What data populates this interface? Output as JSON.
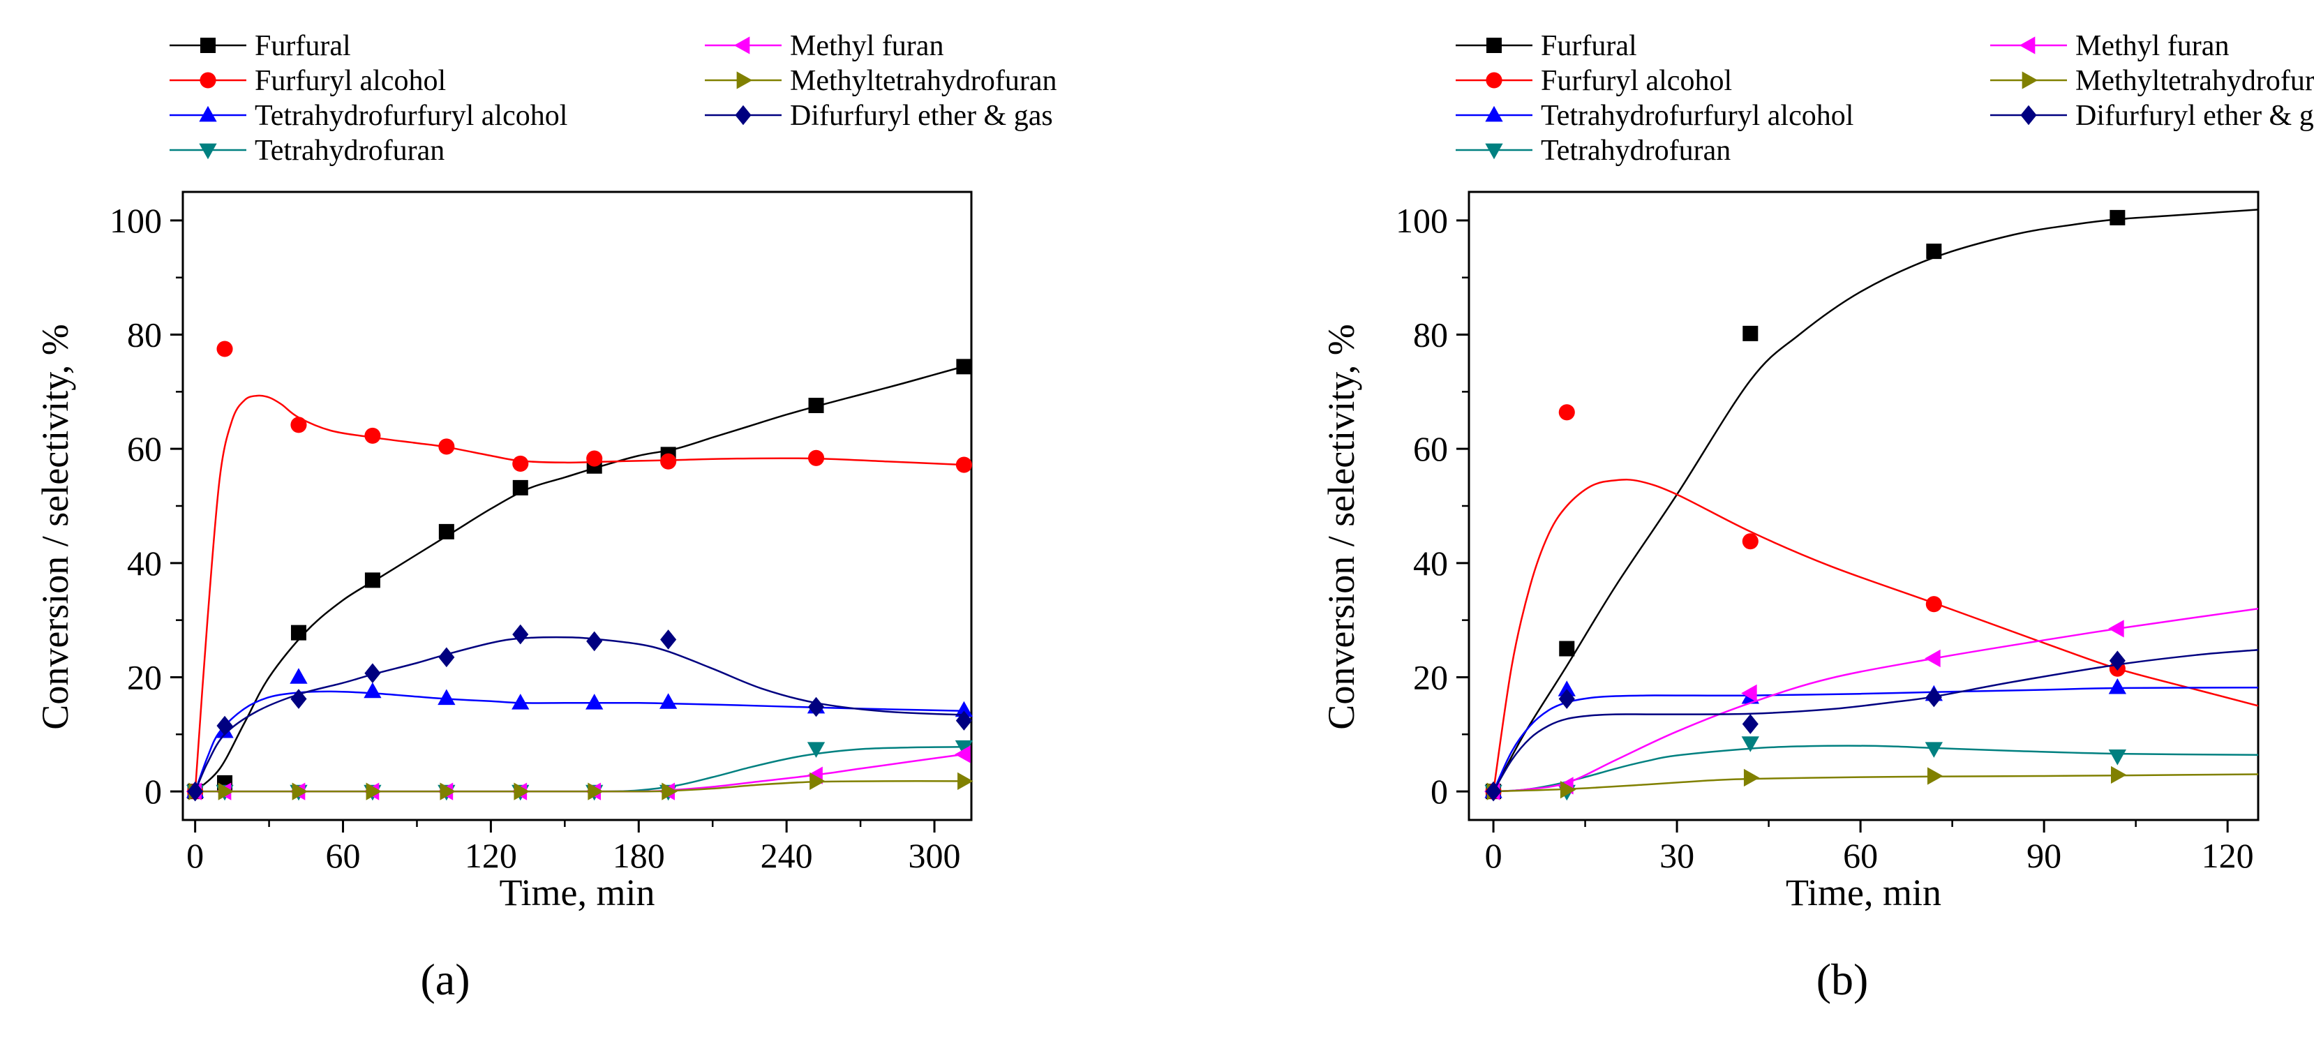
{
  "figure": {
    "panel_labels": [
      "(a)",
      "(b)"
    ]
  },
  "legend_entries": [
    {
      "name": "Furfural",
      "color": "#000000",
      "marker": "square"
    },
    {
      "name": "Furfuryl alcohol",
      "color": "#ff0000",
      "marker": "circle"
    },
    {
      "name": "Tetrahydrofurfuryl alcohol",
      "color": "#0000ff",
      "marker": "triangle-up"
    },
    {
      "name": "Tetrahydrofuran",
      "color": "#008080",
      "marker": "triangle-down"
    },
    {
      "name": "Methyl furan",
      "color": "#ff00ff",
      "marker": "triangle-left"
    },
    {
      "name": "Methyltetrahydrofuran",
      "color": "#808000",
      "marker": "triangle-right"
    },
    {
      "name": "Difurfuryl ether & gas",
      "color": "#000080",
      "marker": "diamond"
    }
  ],
  "chart_data": [
    {
      "type": "scatter",
      "panel": "(a)",
      "title": "",
      "xlabel": "Time, min",
      "ylabel": "Conversion / selectivity, %",
      "xlim": [
        -5,
        315
      ],
      "ylim": [
        -5,
        105
      ],
      "xticks": [
        0,
        60,
        120,
        180,
        240,
        300
      ],
      "yticks": [
        0,
        20,
        40,
        60,
        80,
        100
      ],
      "legend_position": "top",
      "series": [
        {
          "name": "Furfural",
          "x": [
            0,
            12,
            42,
            72,
            102,
            132,
            162,
            192,
            252,
            312
          ],
          "y": [
            0,
            1.5,
            27.8,
            37,
            45.5,
            53.2,
            57,
            59,
            67.6,
            74.4
          ],
          "fit_x": [
            0,
            10,
            20,
            30,
            45,
            60,
            75,
            90,
            105,
            120,
            135,
            150,
            165,
            180,
            195,
            210,
            225,
            240,
            255,
            270,
            285,
            300,
            315
          ],
          "fit_y": [
            0,
            4,
            12,
            20,
            28,
            33.5,
            37.5,
            41.5,
            45.5,
            49.5,
            53,
            55,
            57,
            58.8,
            60,
            62,
            64,
            66,
            67.8,
            69.5,
            71.2,
            73,
            74.8
          ]
        },
        {
          "name": "Furfuryl alcohol",
          "x": [
            0,
            12,
            42,
            72,
            102,
            132,
            162,
            192,
            252,
            312
          ],
          "y": [
            0,
            77.5,
            64.2,
            62.3,
            60.4,
            57.4,
            58.3,
            57.8,
            58.4,
            57.2
          ],
          "fit_x": [
            0,
            5,
            10,
            15,
            20,
            25,
            30,
            35,
            42,
            55,
            72,
            90,
            102,
            120,
            132,
            150,
            170,
            192,
            220,
            252,
            280,
            312
          ],
          "fit_y": [
            0,
            30,
            55,
            65,
            68.5,
            69.3,
            69,
            67.8,
            65.5,
            63.2,
            62,
            61,
            60.3,
            58.8,
            57.9,
            57.6,
            57.8,
            58,
            58.3,
            58.3,
            57.8,
            57.2
          ]
        },
        {
          "name": "Tetrahydrofurfuryl alcohol",
          "x": [
            0,
            12,
            42,
            72,
            102,
            132,
            162,
            192,
            252,
            312
          ],
          "y": [
            0,
            10.5,
            20,
            17.5,
            16.3,
            15.5,
            15.5,
            15.6,
            14.8,
            14.2
          ],
          "fit_x": [
            0,
            5,
            10,
            20,
            30,
            42,
            55,
            72,
            90,
            102,
            120,
            132,
            150,
            162,
            180,
            192,
            220,
            252,
            280,
            312
          ],
          "fit_y": [
            0,
            6,
            10.5,
            14.5,
            16.5,
            17.3,
            17.5,
            17.2,
            16.6,
            16.2,
            15.8,
            15.5,
            15.5,
            15.5,
            15.5,
            15.4,
            15.1,
            14.7,
            14.4,
            14.1
          ]
        },
        {
          "name": "Tetrahydrofuran",
          "x": [
            0,
            12,
            42,
            72,
            102,
            132,
            162,
            192,
            252,
            312
          ],
          "y": [
            0,
            0,
            0,
            0,
            0,
            0,
            0,
            0,
            7.5,
            7.8
          ],
          "fit_x": [
            0,
            60,
            120,
            165,
            180,
            195,
            210,
            225,
            240,
            252,
            270,
            290,
            312
          ],
          "fit_y": [
            0,
            0,
            0,
            0,
            0.2,
            1,
            2.5,
            4.2,
            5.7,
            6.6,
            7.4,
            7.7,
            7.8
          ]
        },
        {
          "name": "Methyl furan",
          "x": [
            0,
            12,
            42,
            72,
            102,
            132,
            162,
            192,
            252,
            312
          ],
          "y": [
            0,
            0,
            0,
            0,
            0,
            0,
            0,
            0,
            2.8,
            6.5
          ],
          "fit_x": [
            0,
            60,
            120,
            180,
            192,
            210,
            230,
            252,
            270,
            290,
            312
          ],
          "fit_y": [
            0,
            0,
            0,
            0,
            0.2,
            0.8,
            1.8,
            2.9,
            4,
            5.2,
            6.5
          ]
        },
        {
          "name": "Methyltetrahydrofuran",
          "x": [
            0,
            12,
            42,
            72,
            102,
            132,
            162,
            192,
            252,
            312
          ],
          "y": [
            0,
            0,
            0,
            0,
            0,
            0,
            0,
            0,
            1.8,
            1.8
          ],
          "fit_x": [
            0,
            60,
            120,
            180,
            192,
            210,
            230,
            252,
            280,
            312
          ],
          "fit_y": [
            0,
            0,
            0,
            0,
            0.1,
            0.5,
            1.2,
            1.7,
            1.8,
            1.8
          ]
        },
        {
          "name": "Difurfuryl ether & gas",
          "x": [
            0,
            12,
            42,
            72,
            102,
            132,
            162,
            192,
            252,
            312
          ],
          "y": [
            0,
            11.5,
            16.2,
            20.7,
            23.5,
            27.5,
            26.3,
            26.6,
            14.8,
            12.4
          ],
          "fit_x": [
            0,
            5,
            12,
            25,
            42,
            60,
            72,
            90,
            102,
            120,
            132,
            150,
            162,
            180,
            192,
            210,
            230,
            252,
            280,
            312
          ],
          "fit_y": [
            0,
            5,
            10,
            14,
            17,
            19,
            20.5,
            22.5,
            24,
            26,
            26.8,
            27,
            26.7,
            25.8,
            24.5,
            21.5,
            18,
            15.5,
            14,
            13.4
          ]
        }
      ]
    },
    {
      "type": "scatter",
      "panel": "(b)",
      "title": "",
      "xlabel": "Time, min",
      "ylabel": "Conversion / selectivity, %",
      "xlim": [
        -4,
        125
      ],
      "ylim": [
        -5,
        105
      ],
      "xticks": [
        0,
        30,
        60,
        90,
        120
      ],
      "yticks": [
        0,
        20,
        40,
        60,
        80,
        100
      ],
      "legend_position": "top",
      "series": [
        {
          "name": "Furfural",
          "x": [
            0,
            12,
            42,
            72,
            102
          ],
          "y": [
            0,
            25,
            80.2,
            94.6,
            100.5
          ],
          "fit_x": [
            0,
            5,
            12,
            20,
            30,
            42,
            50,
            60,
            72,
            85,
            95,
            102,
            110,
            125
          ],
          "fit_y": [
            0,
            10,
            22,
            36,
            52,
            72,
            80,
            87.5,
            93.5,
            97.5,
            99.3,
            100.2,
            100.8,
            101.9
          ]
        },
        {
          "name": "Furfuryl alcohol",
          "x": [
            0,
            12,
            42,
            72,
            102
          ],
          "y": [
            0,
            66.4,
            43.8,
            32.8,
            21.5
          ],
          "fit_x": [
            0,
            3,
            6,
            9,
            12,
            16,
            20,
            24,
            30,
            42,
            55,
            72,
            90,
            102,
            115,
            125
          ],
          "fit_y": [
            0,
            22,
            36,
            45,
            50,
            53.5,
            54.5,
            54.3,
            52,
            45.5,
            39.5,
            33,
            26,
            21.5,
            17.8,
            15
          ]
        },
        {
          "name": "Tetrahydrofurfuryl alcohol",
          "x": [
            0,
            12,
            42,
            72,
            102
          ],
          "y": [
            0,
            17.8,
            16.5,
            17,
            18.2
          ],
          "fit_x": [
            0,
            3,
            6,
            9,
            12,
            16,
            20,
            25,
            30,
            42,
            60,
            72,
            90,
            102,
            125
          ],
          "fit_y": [
            0,
            7,
            11.5,
            14.2,
            15.6,
            16.4,
            16.7,
            16.8,
            16.8,
            16.8,
            17.1,
            17.4,
            17.8,
            18.1,
            18.2
          ]
        },
        {
          "name": "Tetrahydrofuran",
          "x": [
            0,
            12,
            42,
            72,
            102
          ],
          "y": [
            0,
            0,
            8.5,
            7.5,
            6.2
          ],
          "fit_x": [
            0,
            5,
            10,
            15,
            20,
            25,
            30,
            42,
            50,
            58,
            65,
            72,
            85,
            102,
            125
          ],
          "fit_y": [
            0,
            0.3,
            1.2,
            2.5,
            4,
            5.3,
            6.3,
            7.5,
            7.9,
            8,
            7.9,
            7.6,
            7.1,
            6.6,
            6.4
          ]
        },
        {
          "name": "Methyl furan",
          "x": [
            0,
            12,
            42,
            72,
            102
          ],
          "y": [
            0,
            1,
            17.2,
            23.3,
            28.5
          ],
          "fit_x": [
            0,
            5,
            12,
            20,
            30,
            42,
            55,
            72,
            90,
            102,
            115,
            125
          ],
          "fit_y": [
            0,
            0.3,
            1.5,
            5.5,
            10.5,
            15.5,
            19.8,
            23.3,
            26.5,
            28.5,
            30.5,
            32
          ]
        },
        {
          "name": "Methyltetrahydrofuran",
          "x": [
            0,
            12,
            42,
            72,
            102
          ],
          "y": [
            0,
            0.3,
            2.4,
            2.7,
            2.9
          ],
          "fit_x": [
            0,
            12,
            25,
            35,
            42,
            60,
            72,
            90,
            102,
            125
          ],
          "fit_y": [
            0,
            0.4,
            1.2,
            1.9,
            2.2,
            2.5,
            2.6,
            2.7,
            2.8,
            3
          ]
        },
        {
          "name": "Difurfuryl ether & gas",
          "x": [
            0,
            12,
            42,
            72,
            102
          ],
          "y": [
            0,
            16.2,
            11.8,
            16.5,
            22.9
          ],
          "fit_x": [
            0,
            3,
            6,
            9,
            12,
            16,
            20,
            25,
            30,
            42,
            55,
            65,
            72,
            85,
            102,
            115,
            125
          ],
          "fit_y": [
            0,
            5.5,
            9.3,
            11.5,
            12.7,
            13.3,
            13.5,
            13.5,
            13.5,
            13.6,
            14.4,
            15.6,
            16.6,
            19.2,
            22.2,
            23.9,
            24.8
          ]
        }
      ]
    }
  ]
}
